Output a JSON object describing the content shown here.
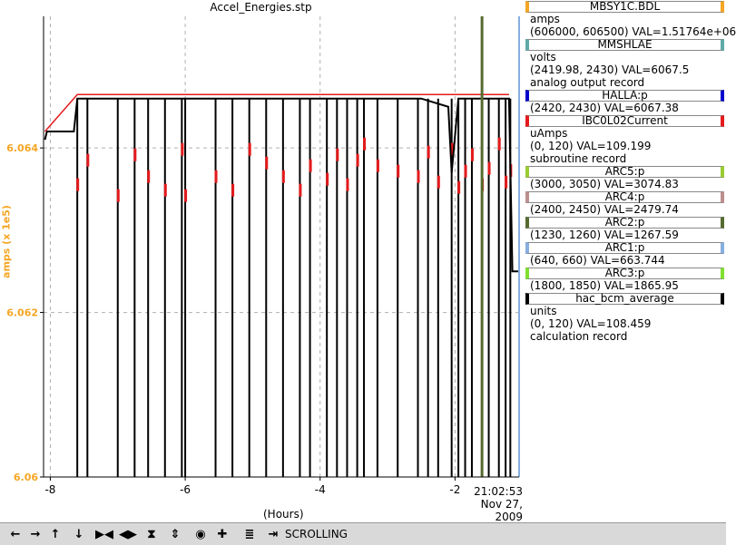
{
  "title": "Accel_Energies.stp",
  "axes": {
    "ylabel": "amps (x 1e5)",
    "xlabel": "(Hours)",
    "time_line1": "21:02:53",
    "time_line2": "Nov 27, 2009",
    "yticks": [
      "6.06",
      "6.062",
      "6.064"
    ],
    "xticks": [
      "-8",
      "-6",
      "-4",
      "-2"
    ]
  },
  "legend": [
    {
      "name": "MBSY1C.BDL",
      "color": "#f5a623",
      "lines": [
        "amps",
        "(606000, 606500)  VAL=1.51764e+06"
      ]
    },
    {
      "name": "MMSHLAE",
      "color": "#5faaa8",
      "lines": [
        "volts",
        "(2419.98, 2430) VAL=6067.5",
        "analog output record"
      ]
    },
    {
      "name": "HALLA:p",
      "color": "#0000cc",
      "lines": [
        "(2420, 2430) VAL=6067.38"
      ]
    },
    {
      "name": "IBC0L02Current",
      "color": "#e41a1c",
      "lines": [
        "uAmps",
        "(0, 120)  VAL=109.199",
        "subroutine record"
      ]
    },
    {
      "name": "ARC5:p",
      "color": "#9acd32",
      "lines": [
        "(3000, 3050) VAL=3074.83"
      ]
    },
    {
      "name": "ARC4:p",
      "color": "#bc8f8f",
      "lines": [
        "(2400, 2450) VAL=2479.74"
      ]
    },
    {
      "name": "ARC2:p",
      "color": "#556b2f",
      "lines": [
        "(1230, 1260) VAL=1267.59"
      ]
    },
    {
      "name": "ARC1:p",
      "color": "#87aee0",
      "lines": [
        "(640, 660) VAL=663.744"
      ]
    },
    {
      "name": "ARC3:p",
      "color": "#7fe030",
      "lines": [
        "(1800, 1850) VAL=1865.95"
      ]
    },
    {
      "name": "hac_bcm_average",
      "color": "#000000",
      "lines": [
        "units",
        "(0, 120)  VAL=108.459",
        "calculation record"
      ]
    }
  ],
  "toolbar": {
    "status": "SCROLLING",
    "icons": [
      "arrow-left-icon",
      "arrow-right-icon",
      "arrow-up-icon",
      "arrow-down-icon",
      "zoom-in-h-icon",
      "zoom-out-h-icon",
      "zoom-in-v-icon",
      "zoom-out-v-icon",
      "center-icon",
      "add-icon",
      "graph-icon",
      "scroll-end-icon"
    ]
  },
  "chart_data": {
    "type": "line",
    "title": "Accel_Energies.stp",
    "xlabel": "(Hours)",
    "ylabel": "amps (x 1e5)",
    "xlim": [
      -8.1,
      -1.05
    ],
    "ylim": [
      6.06,
      6.0656
    ],
    "grid": true,
    "series": [
      {
        "name": "hac_bcm_average",
        "color": "#000000",
        "x": [
          -8.08,
          -8.05,
          -7.65,
          -7.6,
          -7.0,
          -6.0,
          -5.0,
          -4.0,
          -3.0,
          -2.5,
          -2.1,
          -2.05,
          -1.95,
          -1.7,
          -1.5,
          -1.2,
          -1.15,
          -1.05
        ],
        "y": [
          6.0641,
          6.0642,
          6.0642,
          6.0646,
          6.0646,
          6.0646,
          6.0646,
          6.0646,
          6.0646,
          6.0646,
          6.0645,
          6.0637,
          6.0646,
          6.0646,
          6.0646,
          6.0646,
          6.0625,
          6.0625
        ]
      },
      {
        "name": "IBC0L02Current",
        "color": "#e41a1c",
        "x": [
          -8.08,
          -7.6,
          -7.0,
          -6.0,
          -5.0,
          -4.0,
          -3.0,
          -2.0,
          -1.5,
          -1.2
        ],
        "y": [
          6.0642,
          6.06465,
          6.06465,
          6.06465,
          6.06465,
          6.06465,
          6.06465,
          6.06465,
          6.06465,
          6.06465
        ]
      }
    ],
    "dropouts_hours": [
      -7.6,
      -7.45,
      -7.0,
      -6.75,
      -6.55,
      -6.3,
      -6.05,
      -6.0,
      -5.55,
      -5.3,
      -5.05,
      -4.8,
      -4.55,
      -4.3,
      -4.15,
      -3.9,
      -3.75,
      -3.6,
      -3.45,
      -3.35,
      -3.15,
      -2.85,
      -2.55,
      -2.4,
      -2.25,
      -2.05,
      -1.95,
      -1.85,
      -1.75,
      -1.6,
      -1.5,
      -1.35,
      -1.25,
      -1.18
    ],
    "markers": [
      {
        "name": "ARC2:p",
        "x": -1.6,
        "color": "#556b2f"
      },
      {
        "name": "ARC1:p",
        "x": -1.05,
        "color": "#87aee0"
      }
    ]
  }
}
